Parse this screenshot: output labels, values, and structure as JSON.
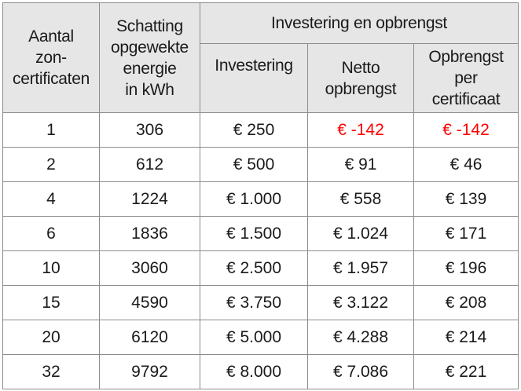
{
  "header": {
    "col_certificates": [
      "Aantal",
      "zon-",
      "certificaten"
    ],
    "col_energy": [
      "Schatting",
      "opgewekte",
      "energie",
      "in kWh"
    ],
    "group_label": "Investering en opbrengst",
    "col_investment": [
      "Investering"
    ],
    "col_net_yield": [
      "Netto",
      "opbrengst"
    ],
    "col_yield_per_cert": [
      "Opbrengst",
      "per",
      "certificaat"
    ]
  },
  "rows": [
    {
      "certificates": "1",
      "energy": "306",
      "investment": "€ 250",
      "net_yield": "€ -142",
      "per_cert": "€ -142",
      "negative": true
    },
    {
      "certificates": "2",
      "energy": "612",
      "investment": "€ 500",
      "net_yield": "€ 91",
      "per_cert": "€ 46",
      "negative": false
    },
    {
      "certificates": "4",
      "energy": "1224",
      "investment": "€ 1.000",
      "net_yield": "€ 558",
      "per_cert": "€ 139",
      "negative": false
    },
    {
      "certificates": "6",
      "energy": "1836",
      "investment": "€ 1.500",
      "net_yield": "€ 1.024",
      "per_cert": "€ 171",
      "negative": false
    },
    {
      "certificates": "10",
      "energy": "3060",
      "investment": "€ 2.500",
      "net_yield": "€ 1.957",
      "per_cert": "€ 196",
      "negative": false
    },
    {
      "certificates": "15",
      "energy": "4590",
      "investment": "€ 3.750",
      "net_yield": "€ 3.122",
      "per_cert": "€ 208",
      "negative": false
    },
    {
      "certificates": "20",
      "energy": "6120",
      "investment": "€ 5.000",
      "net_yield": "€ 4.288",
      "per_cert": "€ 214",
      "negative": false
    },
    {
      "certificates": "32",
      "energy": "9792",
      "investment": "€ 8.000",
      "net_yield": "€ 7.086",
      "per_cert": "€ 221",
      "negative": false
    }
  ],
  "colors": {
    "header_background": "#e6e6e6",
    "negative_value": "#ff0000",
    "border": "#8c8c8c"
  }
}
